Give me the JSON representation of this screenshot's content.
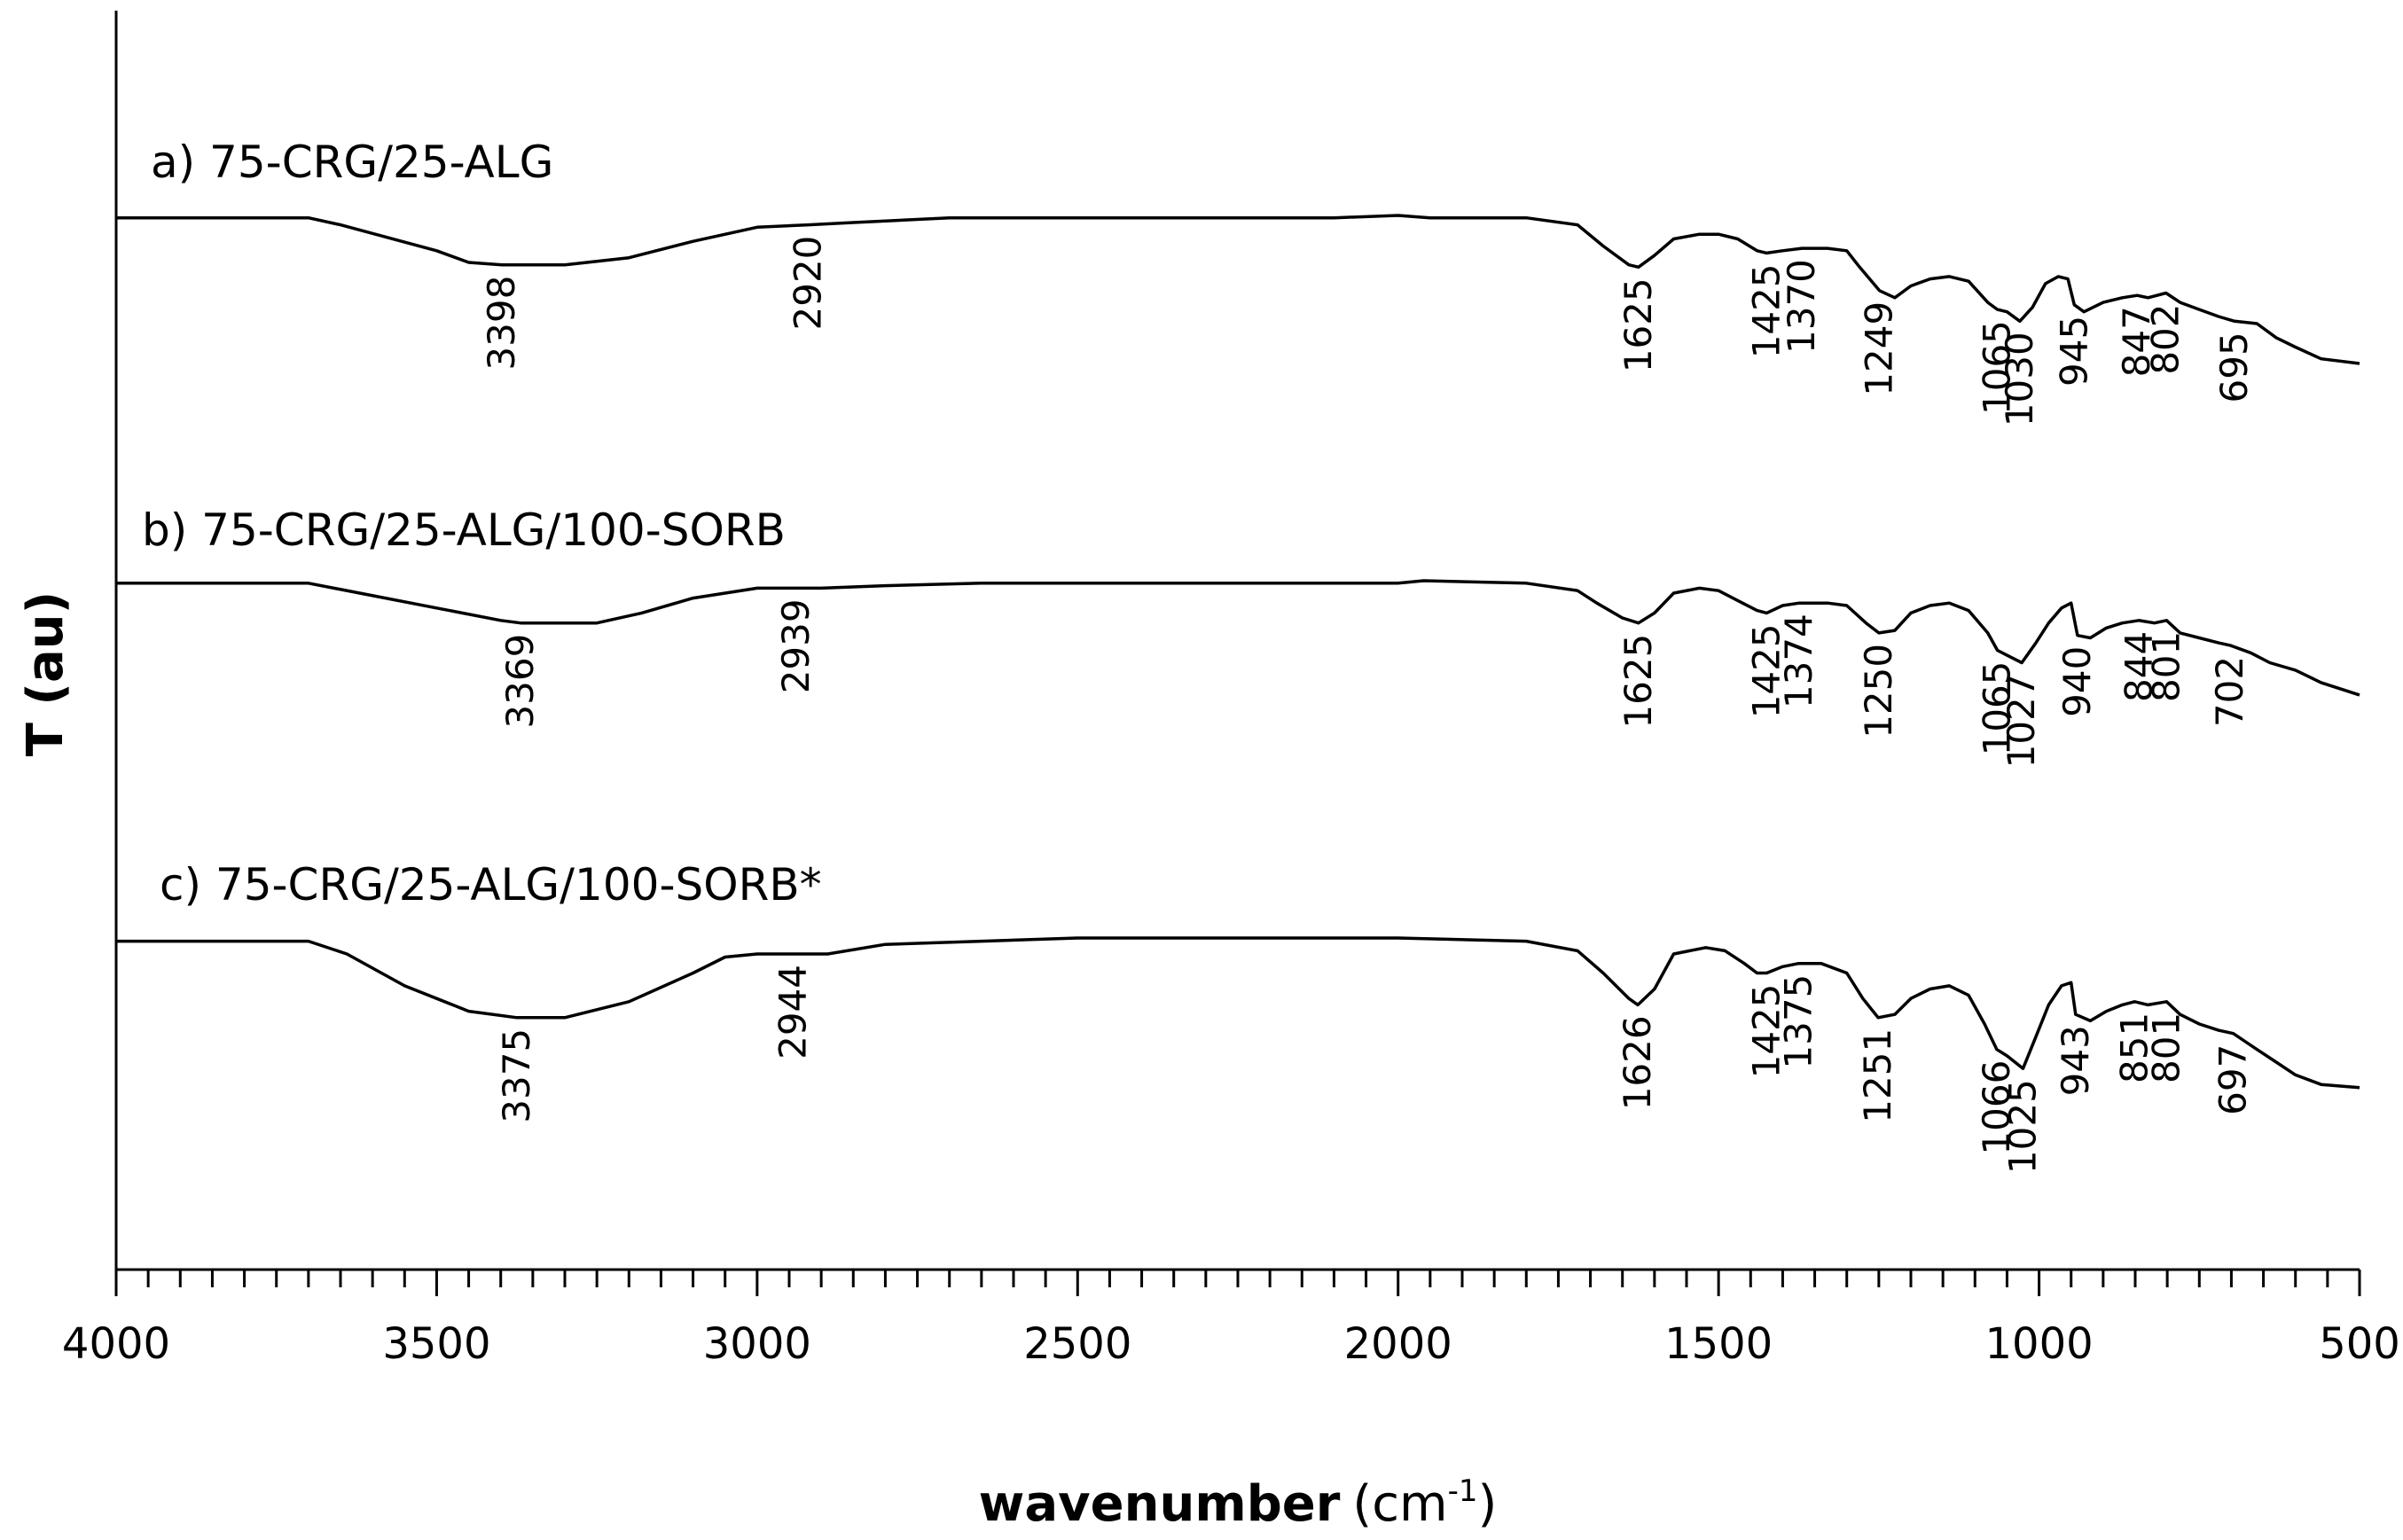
{
  "chart_data": {
    "type": "line",
    "xlabel": {
      "main": "wavenumber",
      "unit_open": "(cm",
      "unit_sup": "-1",
      "unit_close": ")"
    },
    "ylabel": "T (au)",
    "xlim": [
      4000,
      500
    ],
    "x_reversed": true,
    "x_ticks": [
      4000,
      3500,
      3000,
      2500,
      2000,
      1500,
      1000,
      500
    ],
    "y_ticks": false,
    "grid": false,
    "series": [
      {
        "name": "a) 75-CRG/25-ALG",
        "points": [
          [
            4000,
            100
          ],
          [
            3700,
            100
          ],
          [
            3650,
            97
          ],
          [
            3500,
            86
          ],
          [
            3450,
            81
          ],
          [
            3398,
            80
          ],
          [
            3300,
            80
          ],
          [
            3200,
            83
          ],
          [
            3100,
            90
          ],
          [
            3000,
            96
          ],
          [
            2920,
            97
          ],
          [
            2850,
            98
          ],
          [
            2700,
            100
          ],
          [
            2500,
            100
          ],
          [
            2300,
            100
          ],
          [
            2100,
            100
          ],
          [
            2000,
            101
          ],
          [
            1950,
            100
          ],
          [
            1800,
            100
          ],
          [
            1720,
            97
          ],
          [
            1680,
            88
          ],
          [
            1640,
            80
          ],
          [
            1625,
            79
          ],
          [
            1600,
            84
          ],
          [
            1570,
            91
          ],
          [
            1530,
            93
          ],
          [
            1500,
            93
          ],
          [
            1470,
            91
          ],
          [
            1440,
            86
          ],
          [
            1425,
            85
          ],
          [
            1400,
            86
          ],
          [
            1370,
            87
          ],
          [
            1330,
            87
          ],
          [
            1300,
            86
          ],
          [
            1280,
            79
          ],
          [
            1249,
            69
          ],
          [
            1225,
            66
          ],
          [
            1200,
            71
          ],
          [
            1170,
            74
          ],
          [
            1140,
            75
          ],
          [
            1110,
            73
          ],
          [
            1080,
            64
          ],
          [
            1065,
            61
          ],
          [
            1050,
            60
          ],
          [
            1030,
            56
          ],
          [
            1010,
            62
          ],
          [
            990,
            72
          ],
          [
            970,
            75
          ],
          [
            955,
            74
          ],
          [
            945,
            63
          ],
          [
            930,
            60
          ],
          [
            900,
            64
          ],
          [
            870,
            66
          ],
          [
            847,
            67
          ],
          [
            830,
            66
          ],
          [
            802,
            68
          ],
          [
            780,
            64
          ],
          [
            750,
            61
          ],
          [
            720,
            58
          ],
          [
            695,
            56
          ],
          [
            660,
            55
          ],
          [
            630,
            49
          ],
          [
            600,
            45
          ],
          [
            560,
            40
          ],
          [
            500,
            38
          ]
        ]
      },
      {
        "name": "b) 75-CRG/25-ALG/100-SORB",
        "points": [
          [
            4000,
            100
          ],
          [
            3700,
            100
          ],
          [
            3620,
            96
          ],
          [
            3500,
            90
          ],
          [
            3400,
            85
          ],
          [
            3369,
            84
          ],
          [
            3300,
            84
          ],
          [
            3250,
            84
          ],
          [
            3180,
            88
          ],
          [
            3100,
            94
          ],
          [
            3000,
            98
          ],
          [
            2939,
            98
          ],
          [
            2900,
            98
          ],
          [
            2800,
            99
          ],
          [
            2650,
            100
          ],
          [
            2500,
            100
          ],
          [
            2300,
            100
          ],
          [
            2000,
            100
          ],
          [
            1960,
            101
          ],
          [
            1800,
            100
          ],
          [
            1720,
            97
          ],
          [
            1690,
            92
          ],
          [
            1650,
            86
          ],
          [
            1625,
            84
          ],
          [
            1600,
            88
          ],
          [
            1570,
            96
          ],
          [
            1530,
            98
          ],
          [
            1500,
            97
          ],
          [
            1470,
            93
          ],
          [
            1440,
            89
          ],
          [
            1425,
            88
          ],
          [
            1400,
            91
          ],
          [
            1374,
            92
          ],
          [
            1330,
            92
          ],
          [
            1300,
            91
          ],
          [
            1270,
            84
          ],
          [
            1250,
            80
          ],
          [
            1225,
            81
          ],
          [
            1200,
            88
          ],
          [
            1170,
            91
          ],
          [
            1140,
            92
          ],
          [
            1110,
            89
          ],
          [
            1080,
            80
          ],
          [
            1065,
            73
          ],
          [
            1050,
            71
          ],
          [
            1027,
            68
          ],
          [
            1005,
            76
          ],
          [
            985,
            84
          ],
          [
            965,
            90
          ],
          [
            950,
            92
          ],
          [
            940,
            79
          ],
          [
            920,
            78
          ],
          [
            895,
            82
          ],
          [
            870,
            84
          ],
          [
            844,
            85
          ],
          [
            820,
            84
          ],
          [
            801,
            85
          ],
          [
            780,
            80
          ],
          [
            750,
            78
          ],
          [
            720,
            76
          ],
          [
            702,
            75
          ],
          [
            670,
            72
          ],
          [
            640,
            68
          ],
          [
            600,
            65
          ],
          [
            560,
            60
          ],
          [
            500,
            55
          ]
        ]
      },
      {
        "name": "c) 75-CRG/25-ALG/100-SORB*",
        "points": [
          [
            4000,
            100
          ],
          [
            3700,
            100
          ],
          [
            3640,
            96
          ],
          [
            3550,
            86
          ],
          [
            3450,
            78
          ],
          [
            3375,
            76
          ],
          [
            3300,
            76
          ],
          [
            3200,
            81
          ],
          [
            3100,
            90
          ],
          [
            3050,
            95
          ],
          [
            3000,
            96
          ],
          [
            2944,
            96
          ],
          [
            2890,
            96
          ],
          [
            2800,
            99
          ],
          [
            2650,
            100
          ],
          [
            2500,
            101
          ],
          [
            2300,
            101
          ],
          [
            2000,
            101
          ],
          [
            1800,
            100
          ],
          [
            1720,
            97
          ],
          [
            1680,
            90
          ],
          [
            1640,
            82
          ],
          [
            1626,
            80
          ],
          [
            1600,
            85
          ],
          [
            1570,
            96
          ],
          [
            1520,
            98
          ],
          [
            1490,
            97
          ],
          [
            1460,
            93
          ],
          [
            1440,
            90
          ],
          [
            1425,
            90
          ],
          [
            1400,
            92
          ],
          [
            1375,
            93
          ],
          [
            1340,
            93
          ],
          [
            1300,
            90
          ],
          [
            1275,
            82
          ],
          [
            1251,
            76
          ],
          [
            1225,
            77
          ],
          [
            1200,
            82
          ],
          [
            1170,
            85
          ],
          [
            1140,
            86
          ],
          [
            1110,
            83
          ],
          [
            1085,
            74
          ],
          [
            1066,
            66
          ],
          [
            1050,
            64
          ],
          [
            1025,
            60
          ],
          [
            1005,
            70
          ],
          [
            985,
            80
          ],
          [
            965,
            86
          ],
          [
            950,
            87
          ],
          [
            943,
            77
          ],
          [
            920,
            75
          ],
          [
            895,
            78
          ],
          [
            870,
            80
          ],
          [
            851,
            81
          ],
          [
            830,
            80
          ],
          [
            801,
            81
          ],
          [
            780,
            77
          ],
          [
            750,
            74
          ],
          [
            720,
            72
          ],
          [
            697,
            71
          ],
          [
            660,
            66
          ],
          [
            630,
            62
          ],
          [
            600,
            58
          ],
          [
            560,
            55
          ],
          [
            500,
            54
          ]
        ]
      }
    ],
    "peak_labels": [
      [
        "3398",
        "2920",
        "1625",
        "1425",
        "1370",
        "1249",
        "1065",
        "1030",
        "945",
        "847",
        "802",
        "695"
      ],
      [
        "3369",
        "2939",
        "1625",
        "1425",
        "1374",
        "1250",
        "1065",
        "1027",
        "940",
        "844",
        "801",
        "702"
      ],
      [
        "3375",
        "2944",
        "1626",
        "1425",
        "1375",
        "1251",
        "1066",
        "1025",
        "943",
        "851",
        "801",
        "697"
      ]
    ]
  }
}
